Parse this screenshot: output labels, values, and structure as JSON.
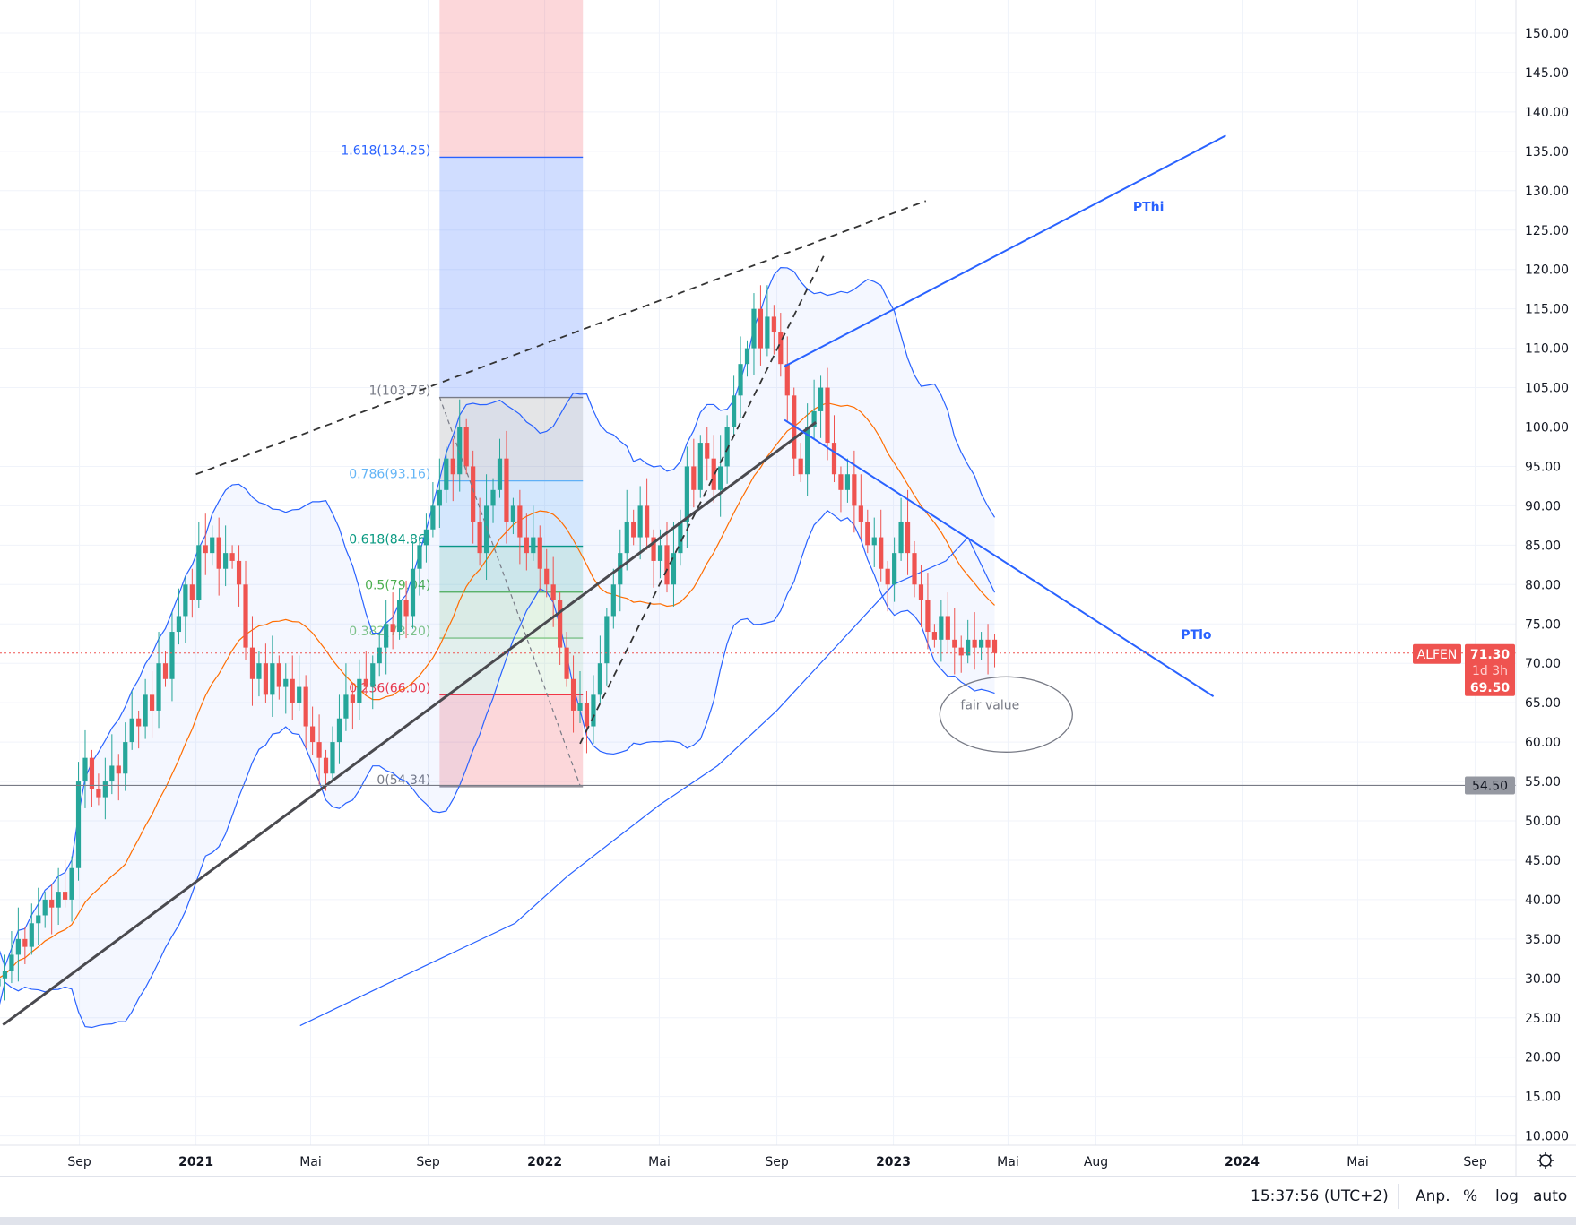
{
  "chart_data": {
    "type": "candlestick",
    "symbol": "ALFEN",
    "interval": "weekly",
    "last_candle_date": "2023-04-17",
    "closes": [
      30,
      31,
      33,
      35,
      34,
      37,
      38,
      40,
      39,
      41,
      40,
      44,
      55,
      58,
      54,
      53,
      55,
      57,
      56,
      60,
      63,
      62,
      66,
      64,
      70,
      68,
      74,
      76,
      80,
      78,
      85,
      84,
      86,
      82,
      84,
      83,
      80,
      72,
      68,
      70,
      66,
      70,
      67,
      68,
      65,
      67,
      62,
      60,
      58,
      56,
      60,
      63,
      66,
      65,
      68,
      67,
      70,
      72,
      75,
      74,
      78,
      76,
      82,
      85,
      87,
      90,
      92,
      96,
      94,
      100,
      95,
      88,
      84,
      90,
      92,
      96,
      88,
      90,
      86,
      84,
      86,
      82,
      80,
      78,
      72,
      68,
      64,
      65,
      62,
      66,
      70,
      76,
      80,
      84,
      88,
      86,
      90,
      86,
      83,
      85,
      80,
      84,
      88,
      95,
      92,
      98,
      96,
      92,
      95,
      100,
      104,
      108,
      110,
      115,
      110,
      114,
      112,
      108,
      104,
      96,
      94,
      100,
      102,
      105,
      98,
      94,
      92,
      94,
      90,
      88,
      85,
      86,
      82,
      80,
      84,
      88,
      84,
      80,
      78,
      74,
      73,
      76,
      73,
      72,
      71,
      73,
      72,
      73,
      72,
      71.3
    ],
    "last_candle": {
      "open": 73.0,
      "high": 73.7,
      "low": 69.5,
      "close": 71.3
    },
    "y_axis": {
      "min": 10,
      "max": 150,
      "step": 5,
      "scale": "linear",
      "tick_labels": [
        "150.00",
        "145.00",
        "140.00",
        "135.00",
        "130.00",
        "125.00",
        "120.00",
        "115.00",
        "110.00",
        "105.00",
        "100.00",
        "95.00",
        "90.00",
        "85.00",
        "80.00",
        "75.00",
        "70.00",
        "65.00",
        "60.00",
        "55.00",
        "50.00",
        "45.00",
        "40.00",
        "35.00",
        "30.00",
        "25.00",
        "20.00",
        "15.00",
        "10.000"
      ]
    },
    "x_axis": {
      "ticks": [
        {
          "label": "Sep",
          "date": "2020-09-01",
          "bold": false
        },
        {
          "label": "2021",
          "date": "2021-01-01",
          "bold": true
        },
        {
          "label": "Mai",
          "date": "2021-05-01",
          "bold": false
        },
        {
          "label": "Sep",
          "date": "2021-09-01",
          "bold": false
        },
        {
          "label": "2022",
          "date": "2022-01-01",
          "bold": true
        },
        {
          "label": "Mai",
          "date": "2022-05-01",
          "bold": false
        },
        {
          "label": "Sep",
          "date": "2022-09-01",
          "bold": false
        },
        {
          "label": "2023",
          "date": "2023-01-01",
          "bold": true
        },
        {
          "label": "Mai",
          "date": "2023-05-01",
          "bold": false
        },
        {
          "label": "Aug",
          "date": "2023-08-01",
          "bold": false
        },
        {
          "label": "2024",
          "date": "2024-01-01",
          "bold": true
        },
        {
          "label": "Mai",
          "date": "2024-05-01",
          "bold": false
        },
        {
          "label": "Sep",
          "date": "2024-09-01",
          "bold": false
        }
      ]
    },
    "indicators": {
      "bollinger": {
        "length": 20,
        "mult": 2,
        "color": "#2962ff",
        "basis_color": "#ff6d00"
      },
      "long_ma": {
        "color": "#2962ff",
        "points": [
          {
            "date": "2021-04-20",
            "value": 24
          },
          {
            "date": "2021-08-01",
            "value": 30
          },
          {
            "date": "2021-12-01",
            "value": 37
          },
          {
            "date": "2022-01-25",
            "value": 43
          },
          {
            "date": "2022-05-01",
            "value": 52
          },
          {
            "date": "2022-07-01",
            "value": 57
          },
          {
            "date": "2022-09-01",
            "value": 64
          },
          {
            "date": "2022-11-01",
            "value": 72
          },
          {
            "date": "2023-01-01",
            "value": 80
          },
          {
            "date": "2023-02-25",
            "value": 83
          },
          {
            "date": "2023-03-20",
            "value": 86
          },
          {
            "date": "2023-04-17",
            "value": 79
          }
        ]
      }
    },
    "fibonacci": {
      "start_date": "2021-09-13",
      "end_date": "2022-02-10",
      "levels": [
        {
          "label": "1.618(134.25)",
          "price": 134.25,
          "color": "#2962ff"
        },
        {
          "label": "1(103.75)",
          "price": 103.75,
          "color": "#787b86"
        },
        {
          "label": "0.786(93.16)",
          "price": 93.16,
          "color": "#64b5f6"
        },
        {
          "label": "0.618(84.86)",
          "price": 84.86,
          "color": "#089981"
        },
        {
          "label": "0.5(79.04)",
          "price": 79.04,
          "color": "#4caf50"
        },
        {
          "label": "0.382(73.20)",
          "price": 73.2,
          "color": "#81c784"
        },
        {
          "label": "0.236(66.00)",
          "price": 66.0,
          "color": "#f23645"
        },
        {
          "label": "0(54.34)",
          "price": 54.34,
          "color": "#787b86"
        }
      ]
    },
    "drawings": {
      "resistance_dashed": {
        "from": {
          "date": "2021-01-01",
          "price": 94
        },
        "to": {
          "date": "2023-02-04",
          "price": 128.7
        }
      },
      "rally_dashed": {
        "from": {
          "date": "2022-02-07",
          "price": 59.8
        },
        "to": {
          "date": "2022-10-20",
          "price": 121.7
        }
      },
      "fib_trend_dashed": {
        "from": {
          "date": "2021-09-13",
          "price": 103.8
        },
        "to": {
          "date": "2022-02-07",
          "price": 54.5
        }
      },
      "support_trend": {
        "from": {
          "date": "2020-06-13",
          "price": 24.1
        },
        "to": {
          "date": "2022-10-12",
          "price": 100.6
        }
      },
      "pthi": {
        "label": "PThi",
        "from": {
          "date": "2022-09-09",
          "price": 107.7
        },
        "to": {
          "date": "2023-12-15",
          "price": 137
        },
        "label_at": {
          "date": "2023-09-25",
          "price": 127.4
        }
      },
      "ptlo": {
        "label": "PTlo",
        "from": {
          "date": "2022-09-09",
          "price": 100.9
        },
        "to": {
          "date": "2023-12-02",
          "price": 65.8
        },
        "label_at": {
          "date": "2023-11-14",
          "price": 73.1
        }
      },
      "fair_value": {
        "label": "fair value",
        "center": {
          "date": "2023-04-29",
          "price": 63.5
        }
      },
      "horizontal_level": {
        "price": 54.5,
        "label": "54.50"
      }
    },
    "price_labels": {
      "symbol": "ALFEN",
      "last": "71.30",
      "countdown": "1d 3h",
      "low": "69.50"
    },
    "colors": {
      "up": "#26a69a",
      "down": "#ef5350",
      "accent": "#2962ff"
    }
  },
  "footer": {
    "time": "15:37:56 (UTC+2)",
    "adjust": "Anp.",
    "percent": "%",
    "log": "log",
    "auto": "auto"
  }
}
